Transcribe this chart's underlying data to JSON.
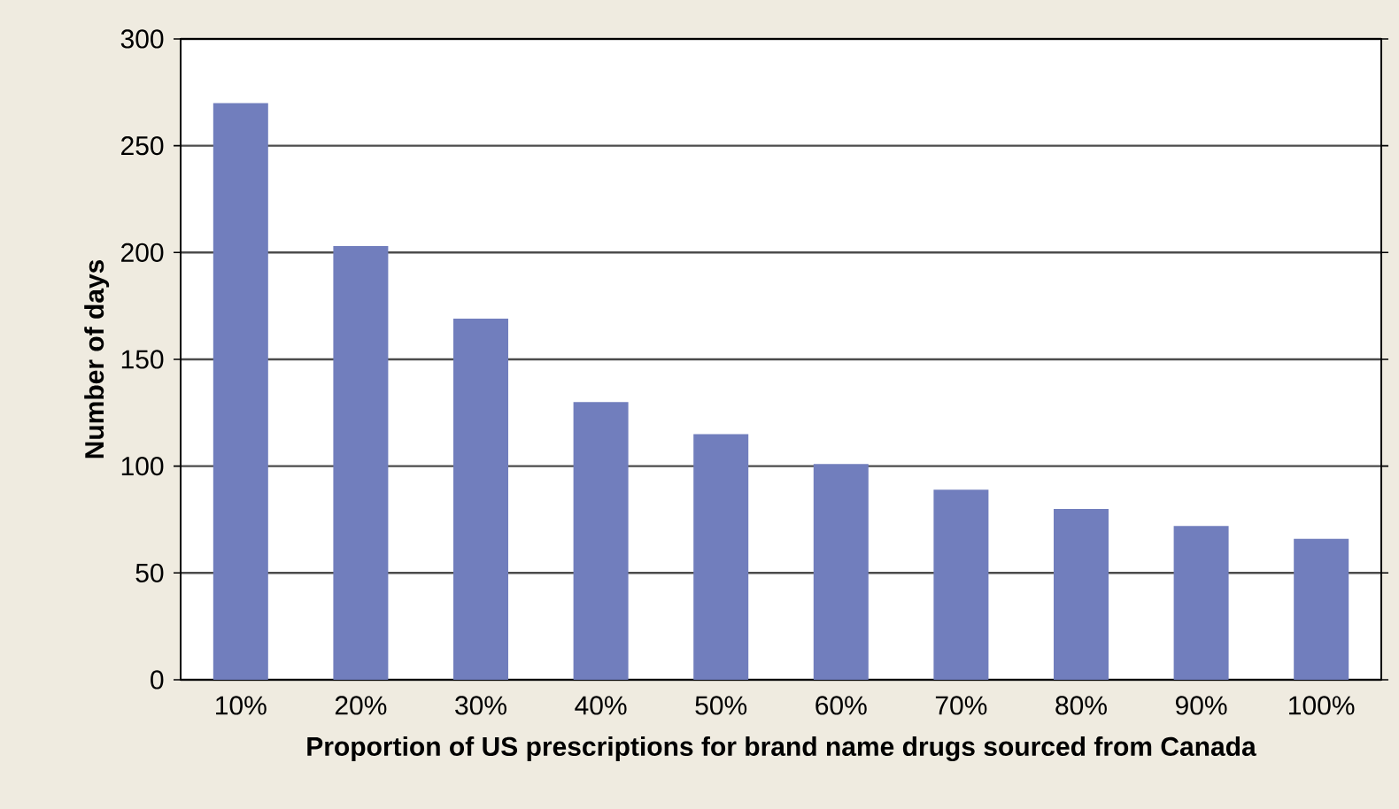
{
  "chart_data": {
    "type": "bar",
    "xlabel": "Proportion of US prescriptions for brand name drugs sourced from Canada",
    "ylabel": "Number of days",
    "categories": [
      "10%",
      "20%",
      "30%",
      "40%",
      "50%",
      "60%",
      "70%",
      "80%",
      "90%",
      "100%"
    ],
    "values": [
      270,
      203,
      169,
      130,
      115,
      101,
      89,
      80,
      72,
      66
    ],
    "color": "#717ebd",
    "ylim": [
      0,
      300
    ],
    "yticks": [
      0,
      50,
      100,
      150,
      200,
      250,
      300
    ],
    "grid": "y"
  }
}
